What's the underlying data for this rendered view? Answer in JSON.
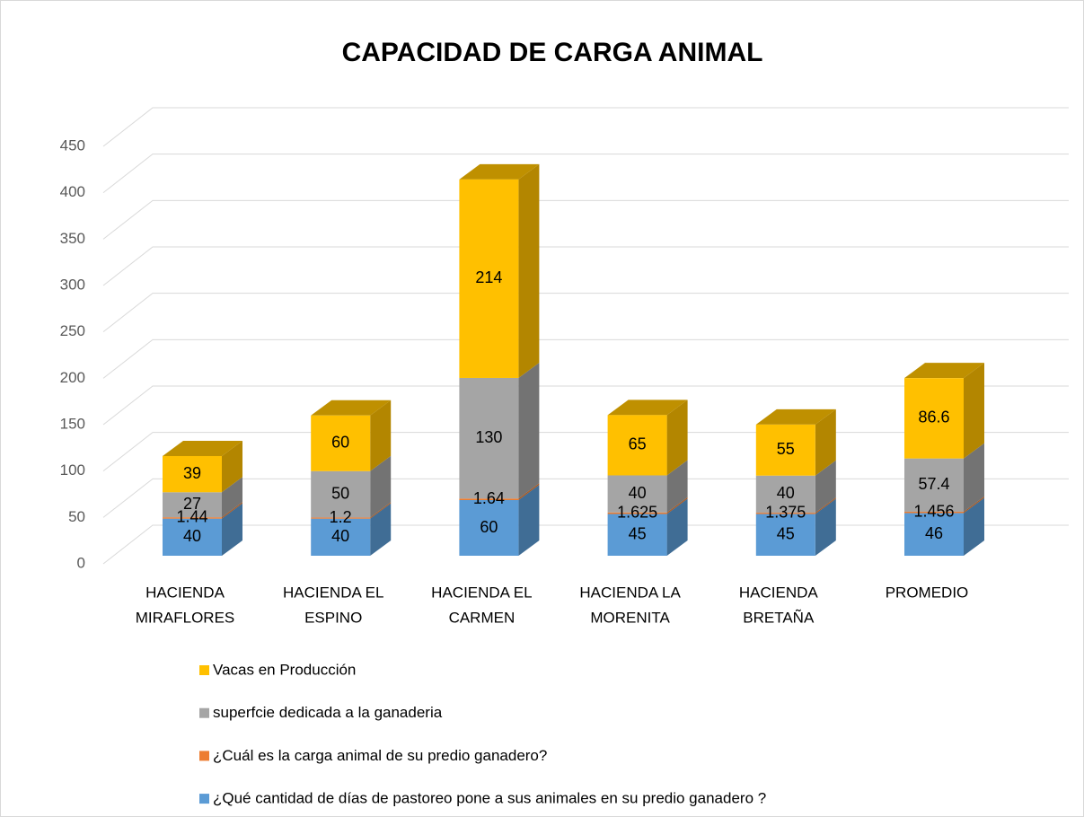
{
  "chart_data": {
    "type": "bar3d_stacked",
    "title": "CAPACIDAD DE CARGA ANIMAL",
    "categories": [
      [
        "HACIENDA",
        "MIRAFLORES"
      ],
      [
        "HACIENDA EL",
        "ESPINO"
      ],
      [
        "HACIENDA EL",
        "CARMEN"
      ],
      [
        "HACIENDA LA",
        "MORENITA"
      ],
      [
        "HACIENDA",
        "BRETAÑA"
      ],
      [
        "PROMEDIO"
      ]
    ],
    "series": [
      {
        "name": "¿Qué cantidad de días de pastoreo pone a sus animales en su predio ganadero ?",
        "color": "#5b9bd5",
        "values": [
          40,
          40,
          60,
          45,
          45,
          46
        ]
      },
      {
        "name": "¿Cuál es la carga animal de su predio ganadero?",
        "color": "#ed7d31",
        "values": [
          1.44,
          1.2,
          1.64,
          1.625,
          1.375,
          1.456
        ]
      },
      {
        "name": "superfcie dedicada a la ganaderia",
        "color": "#a5a5a5",
        "values": [
          27,
          50,
          130,
          40,
          40,
          57.4
        ]
      },
      {
        "name": "Vacas en Producción",
        "color": "#ffc000",
        "values": [
          39,
          60,
          214,
          65,
          55,
          86.6
        ]
      }
    ],
    "ylim": [
      0,
      450
    ],
    "yticks": [
      0,
      50,
      100,
      150,
      200,
      250,
      300,
      350,
      400,
      450
    ],
    "grid": true,
    "legend": "bottom"
  }
}
